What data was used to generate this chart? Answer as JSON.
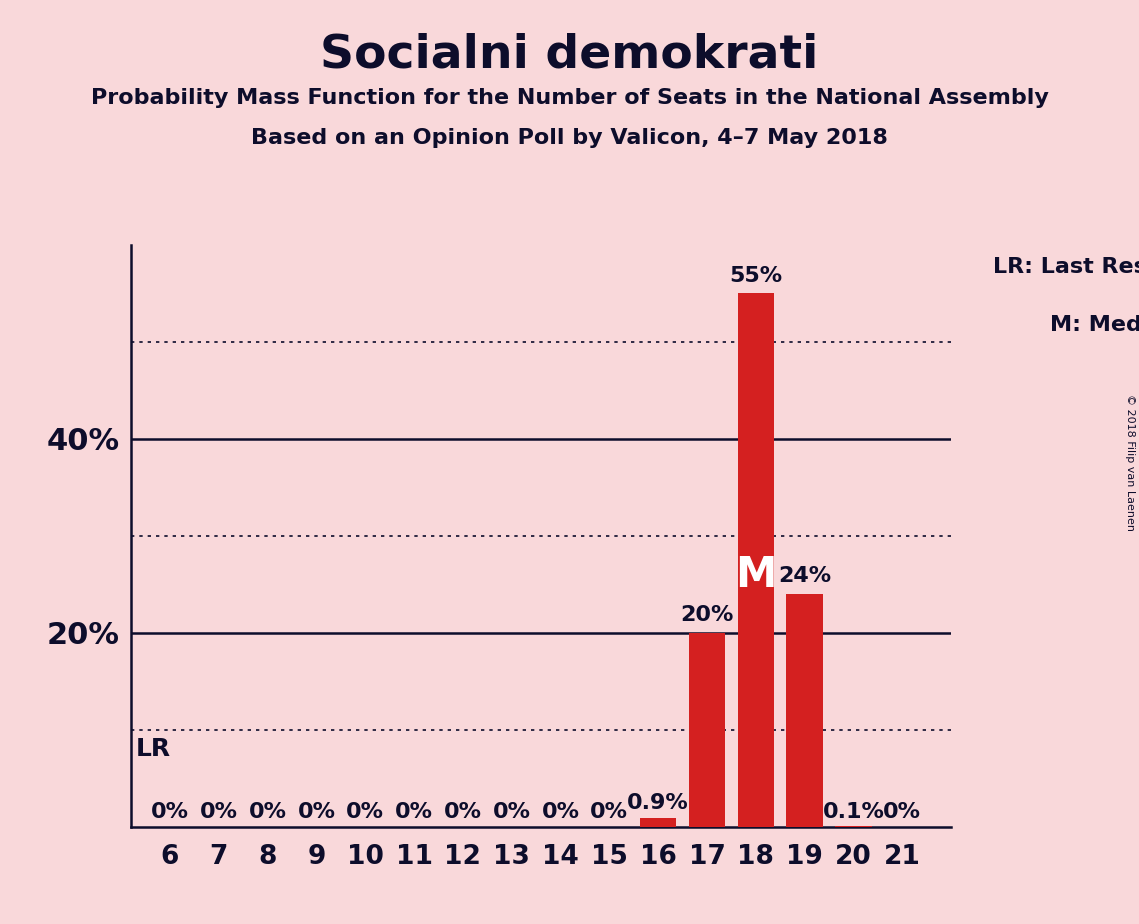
{
  "title": "Socialni demokrati",
  "subtitle1": "Probability Mass Function for the Number of Seats in the National Assembly",
  "subtitle2": "Based on an Opinion Poll by Valicon, 4–7 May 2018",
  "copyright": "© 2018 Filip van Laenen",
  "categories": [
    6,
    7,
    8,
    9,
    10,
    11,
    12,
    13,
    14,
    15,
    16,
    17,
    18,
    19,
    20,
    21
  ],
  "values": [
    0.0,
    0.0,
    0.0,
    0.0,
    0.0,
    0.0,
    0.0,
    0.0,
    0.0,
    0.0,
    0.9,
    20.0,
    55.0,
    24.0,
    0.1,
    0.0
  ],
  "bar_color": "#d42020",
  "background_color": "#f9d8da",
  "last_result_seat": 6,
  "median_seat": 18,
  "ylim": [
    0,
    60
  ],
  "solid_yticks": [
    20,
    40
  ],
  "dotted_yticks": [
    10,
    30,
    50
  ],
  "labeled_yticks": [
    20,
    40
  ],
  "ytick_labels": {
    "20": "20%",
    "40": "40%"
  },
  "value_labels": {
    "6": "0%",
    "7": "0%",
    "8": "0%",
    "9": "0%",
    "10": "0%",
    "11": "0%",
    "12": "0%",
    "13": "0%",
    "14": "0%",
    "15": "0%",
    "16": "0.9%",
    "17": "20%",
    "18": "55%",
    "19": "24%",
    "20": "0.1%",
    "21": "0%"
  },
  "legend_text1": "LR: Last Result",
  "legend_text2": "M: Median",
  "lr_label": "LR",
  "median_label": "M",
  "median_label_fontsize": 30,
  "text_color": "#0d0d2b"
}
